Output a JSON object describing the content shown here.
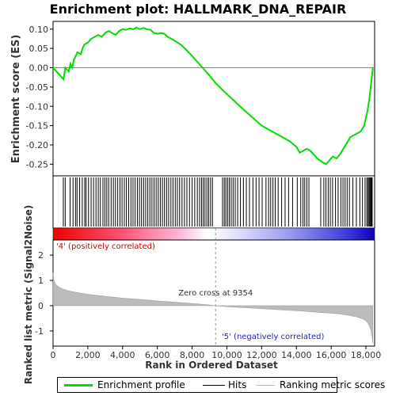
{
  "chart_data": {
    "type": "line",
    "title": "Enrichment plot: HALLMARK_DNA_REPAIR",
    "top_panel": {
      "ylabel": "Enrichment score (ES)",
      "ylim": [
        -0.28,
        0.12
      ],
      "yticks": [
        0.1,
        0.05,
        0.0,
        -0.05,
        -0.1,
        -0.15,
        -0.2,
        -0.25
      ],
      "ytick_labels": [
        "0.10",
        "0.05",
        "0.00",
        "-0.05",
        "-0.10",
        "-0.15",
        "-0.20",
        "-0.25"
      ],
      "series": [
        {
          "name": "Enrichment profile",
          "color": "#00dd00",
          "x": [
            0,
            600,
            700,
            900,
            1000,
            1100,
            1200,
            1300,
            1400,
            1600,
            1700,
            1800,
            2000,
            2200,
            2400,
            2600,
            2800,
            3000,
            3200,
            3400,
            3600,
            3800,
            4000,
            4200,
            4400,
            4600,
            4800,
            5000,
            5200,
            5400,
            5600,
            5800,
            6000,
            6200,
            6400,
            6600,
            6800,
            7000,
            7400,
            7800,
            8200,
            8600,
            9000,
            9354,
            9800,
            10400,
            11000,
            11500,
            12000,
            12400,
            12800,
            13200,
            13600,
            14000,
            14200,
            14400,
            14600,
            14800,
            15000,
            15200,
            15500,
            15700,
            15900,
            16100,
            16300,
            16500,
            16700,
            16900,
            17100,
            17300,
            17500,
            17700,
            17900,
            18000,
            18100,
            18200,
            18250,
            18300,
            18350,
            18400
          ],
          "y": [
            0.0,
            -0.03,
            0.0,
            -0.01,
            0.01,
            0.0,
            0.02,
            0.03,
            0.04,
            0.035,
            0.05,
            0.06,
            0.065,
            0.075,
            0.08,
            0.085,
            0.08,
            0.09,
            0.095,
            0.09,
            0.085,
            0.095,
            0.1,
            0.098,
            0.102,
            0.1,
            0.104,
            0.1,
            0.103,
            0.1,
            0.098,
            0.09,
            0.088,
            0.09,
            0.088,
            0.08,
            0.075,
            0.07,
            0.058,
            0.04,
            0.02,
            0.0,
            -0.02,
            -0.04,
            -0.06,
            -0.085,
            -0.11,
            -0.13,
            -0.15,
            -0.16,
            -0.17,
            -0.18,
            -0.19,
            -0.205,
            -0.22,
            -0.215,
            -0.21,
            -0.215,
            -0.225,
            -0.235,
            -0.245,
            -0.25,
            -0.24,
            -0.23,
            -0.235,
            -0.225,
            -0.21,
            -0.195,
            -0.18,
            -0.175,
            -0.17,
            -0.165,
            -0.15,
            -0.13,
            -0.11,
            -0.08,
            -0.06,
            -0.04,
            -0.02,
            0.0
          ]
        }
      ]
    },
    "hits_panel": {
      "series_name": "Hits",
      "hit_ranks": [
        590,
        700,
        980,
        1150,
        1290,
        1380,
        1530,
        1680,
        1820,
        1900,
        2040,
        2190,
        2330,
        2470,
        2600,
        2720,
        2870,
        2980,
        3090,
        3200,
        3340,
        3470,
        3590,
        3720,
        3850,
        3970,
        4100,
        4220,
        4350,
        4480,
        4600,
        4720,
        4850,
        4970,
        5090,
        5210,
        5330,
        5450,
        5570,
        5690,
        5810,
        5930,
        6050,
        6170,
        6290,
        6410,
        6530,
        6650,
        6780,
        6900,
        7030,
        7150,
        7280,
        7420,
        7560,
        7700,
        7850,
        8000,
        8150,
        8300,
        8430,
        8540,
        8640,
        8740,
        8850,
        8950,
        9060,
        9170,
        9750,
        9850,
        9940,
        10040,
        10140,
        10250,
        10360,
        10480,
        10620,
        10780,
        10950,
        11120,
        11300,
        11500,
        11680,
        11850,
        12030,
        12250,
        12400,
        12520,
        12650,
        12780,
        12950,
        13150,
        13350,
        13550,
        13780,
        14050,
        14250,
        14380,
        14480,
        14600,
        14720,
        15400,
        15580,
        15700,
        15830,
        15950,
        16080,
        16250,
        16400,
        16560,
        16680,
        16800,
        16920,
        17050,
        17250,
        17450,
        17650,
        17800,
        17950,
        18050,
        18120,
        18180,
        18230,
        18280,
        18320,
        18360
      ]
    },
    "metric_panel": {
      "ylabel": "Ranked list metric (Signal2Noise)",
      "xlabel": "Rank in Ordered Dataset",
      "series_name": "Ranking metric scores",
      "ylim": [
        -1.6,
        2.6
      ],
      "yticks": [
        2,
        1,
        0,
        -1
      ],
      "ytick_labels": [
        "2",
        "1",
        "0",
        "-1"
      ],
      "xlim": [
        0,
        18500
      ],
      "xticks": [
        0,
        2000,
        4000,
        6000,
        8000,
        10000,
        12000,
        14000,
        16000,
        18000
      ],
      "xtick_labels": [
        "0",
        "2,000",
        "4,000",
        "6,000",
        "8,000",
        "10,000",
        "12,000",
        "14,000",
        "16,000",
        "18,000"
      ],
      "metric_x": [
        0,
        50,
        150,
        300,
        600,
        1000,
        2000,
        3000,
        4000,
        5000,
        6000,
        7000,
        8000,
        9000,
        9354,
        10000,
        11000,
        12000,
        13000,
        14000,
        15000,
        16000,
        16500,
        17000,
        17500,
        17800,
        18000,
        18100,
        18200,
        18300,
        18350,
        18400
      ],
      "metric_y": [
        1.3,
        1.0,
        0.85,
        0.75,
        0.65,
        0.57,
        0.45,
        0.37,
        0.3,
        0.25,
        0.19,
        0.14,
        0.09,
        0.03,
        0.0,
        -0.04,
        -0.08,
        -0.12,
        -0.16,
        -0.2,
        -0.25,
        -0.3,
        -0.33,
        -0.38,
        -0.45,
        -0.52,
        -0.6,
        -0.68,
        -0.8,
        -1.0,
        -1.2,
        -1.5
      ],
      "zero_cross_label": "Zero cross at 9354",
      "zero_cross_rank": 9354,
      "pos_label": "'4' (positively correlated)",
      "neg_label": "'5' (negatively correlated)",
      "pos_color": "#cc0000",
      "neg_color": "#2222cc"
    },
    "legend": {
      "placement": "bottom",
      "items": [
        {
          "label": "Enrichment profile",
          "color": "#00dd00"
        },
        {
          "label": "Hits",
          "color": "#000000"
        },
        {
          "label": "Ranking metric scores",
          "color": "#bbbbbb"
        }
      ]
    }
  }
}
